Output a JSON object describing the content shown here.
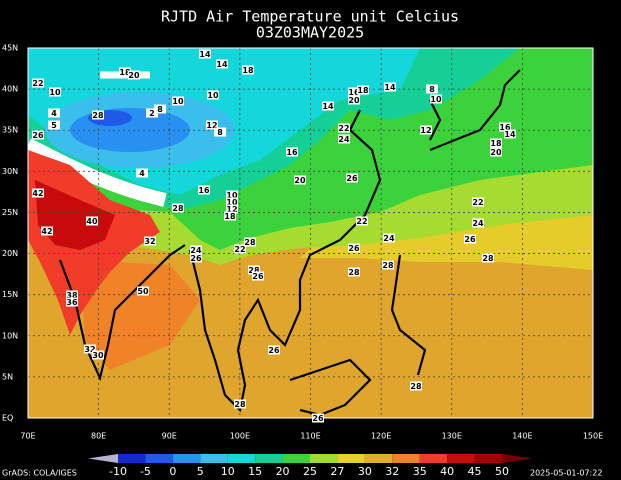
{
  "header": {
    "title": "RJTD Air Temperature unit Celcius",
    "subtitle": "03Z03MAY2025"
  },
  "lat_labels": [
    "EQ",
    "5N",
    "10N",
    "15N",
    "20N",
    "25N",
    "30N",
    "35N",
    "40N",
    "45N"
  ],
  "lon_labels": [
    "70E",
    "80E",
    "90E",
    "100E",
    "110E",
    "120E",
    "130E",
    "140E",
    "150E"
  ],
  "contour_labels": [
    14,
    14,
    18,
    18,
    20,
    22,
    10,
    10,
    10,
    14,
    16,
    20,
    18,
    14,
    8,
    10,
    2,
    8,
    28,
    4,
    5,
    26,
    12,
    8,
    22,
    24,
    12,
    16,
    14,
    18,
    20,
    16,
    4,
    20,
    26,
    42,
    16,
    10,
    10,
    12,
    18,
    28,
    40,
    42,
    22,
    22,
    24,
    26,
    32,
    24,
    22,
    28,
    26,
    24,
    26,
    28,
    26,
    28,
    28,
    28,
    50,
    38,
    36,
    32,
    30,
    26,
    28,
    28,
    26
  ],
  "colorbar": {
    "labels": [
      -10,
      -5,
      0,
      5,
      10,
      15,
      20,
      25,
      27,
      30,
      32,
      35,
      40,
      45,
      50
    ],
    "colors": [
      "#b4b4d2",
      "#1428d2",
      "#1e5ae6",
      "#2890f0",
      "#3cbeec",
      "#14d7dc",
      "#14cf96",
      "#3cd23c",
      "#a0dc32",
      "#e6d228",
      "#e6aa2d",
      "#f08228",
      "#f03c28",
      "#c80a0a",
      "#a00000",
      "#780000"
    ]
  },
  "footer": {
    "credit": "GrADS: COLA/IGES",
    "timestamp": "2025-05-01-07:22"
  }
}
